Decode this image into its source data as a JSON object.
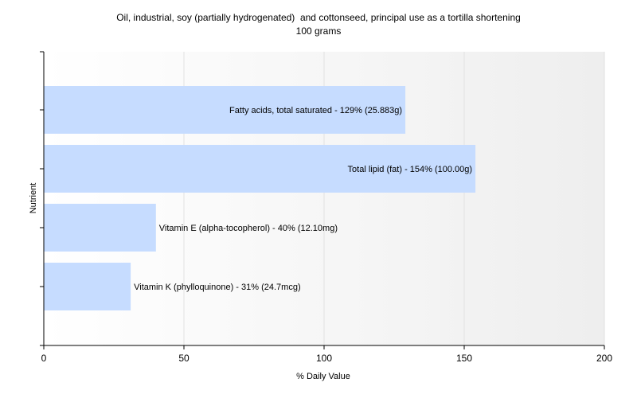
{
  "chart_data": {
    "type": "bar",
    "orientation": "horizontal",
    "title": "Oil, industrial, soy (partially hydrogenated)  and cottonseed, principal use as a tortilla shortening",
    "subtitle": "100 grams",
    "xlabel": "% Daily Value",
    "ylabel": "Nutrient",
    "xlim": [
      0,
      200
    ],
    "xticks": [
      0,
      50,
      100,
      150,
      200
    ],
    "grid": true,
    "bar_color": "#c6dcff",
    "categories": [
      "Fatty acids, total saturated",
      "Total lipid (fat)",
      "Vitamin E (alpha-tocopherol)",
      "Vitamin K (phylloquinone)"
    ],
    "values": [
      129,
      154,
      40,
      31
    ],
    "labels": [
      "Fatty acids, total saturated - 129% (25.883g)",
      "Total lipid (fat) - 154% (100.00g)",
      "Vitamin E (alpha-tocopherol) - 40% (12.10mg)",
      "Vitamin K (phylloquinone) - 31% (24.7mcg)"
    ]
  }
}
